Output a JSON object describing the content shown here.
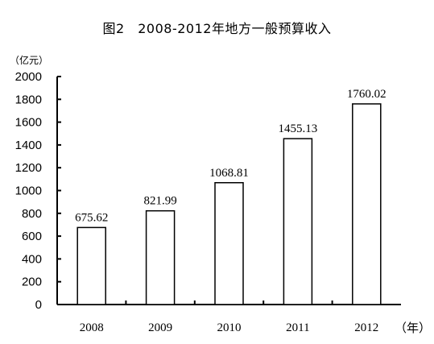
{
  "title": "图2　2008-2012年地方一般预算收入",
  "y_unit": "（亿元）",
  "x_unit": "（年）",
  "chart_data": {
    "type": "bar",
    "title": "图2　2008-2012年地方一般预算收入",
    "xlabel": "（年）",
    "ylabel": "（亿元）",
    "categories": [
      "2008",
      "2009",
      "2010",
      "2011",
      "2012"
    ],
    "values": [
      675.62,
      821.99,
      1068.81,
      1455.13,
      1760.02
    ],
    "data_labels": [
      "675.62",
      "821.99",
      "1068.81",
      "1455.13",
      "1760.02"
    ],
    "ylim": [
      0,
      2000
    ],
    "yticks": [
      0,
      200,
      400,
      600,
      800,
      1000,
      1200,
      1400,
      1600,
      1800,
      2000
    ],
    "grid": false,
    "bar_fill": "#ffffff",
    "bar_stroke": "#000000"
  }
}
